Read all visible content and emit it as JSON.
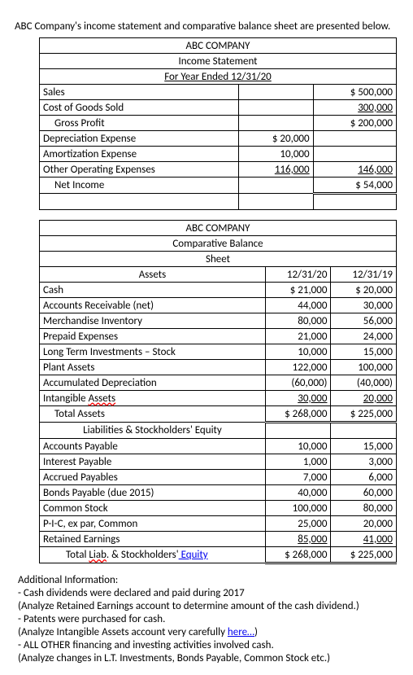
{
  "intro": "ABC Company's income statement and comparative balance sheet are presented below.",
  "income": {
    "title1": "ABC COMPANY",
    "title2": "Income Statement",
    "title3": "For Year Ended 12/31/20",
    "rows": {
      "sales": {
        "label": "Sales",
        "c1": "",
        "c2": "$ 500,000"
      },
      "cogs": {
        "label": "Cost of Goods Sold",
        "c1": "",
        "c2": "300,000"
      },
      "gross": {
        "label": "Gross Profit",
        "c1": "",
        "c2": "$ 200,000"
      },
      "dep": {
        "label": "Depreciation Expense",
        "c1": "$  20,000",
        "c2": ""
      },
      "amort": {
        "label": "Amortization Expense",
        "c1": "10,000",
        "c2": ""
      },
      "other": {
        "label": "Other Operating Expenses",
        "c1": "116,000",
        "c2": "146,000"
      },
      "net": {
        "label": "Net Income",
        "c1": "",
        "c2": "$  54,000"
      }
    }
  },
  "balance": {
    "title1": "ABC COMPANY",
    "title2": "Comparative Balance",
    "title3": "Sheet",
    "assets_header": "Assets",
    "date1": "12/31/20",
    "date2": "12/31/19",
    "rows": {
      "cash": {
        "label": "Cash",
        "c1": "$  21,000",
        "c2": "$  20,000"
      },
      "ar": {
        "label": "Accounts Receivable (net)",
        "c1": "44,000",
        "c2": "30,000"
      },
      "inv": {
        "label": "Merchandise Inventory",
        "c1": "80,000",
        "c2": "56,000"
      },
      "prepd": {
        "label": "Prepaid Expenses",
        "c1": "21,000",
        "c2": "24,000"
      },
      "ltinv": {
        "label": "Long Term Investments – Stock",
        "c1": "10,000",
        "c2": "15,000"
      },
      "plant": {
        "label": "Plant Assets",
        "c1": "122,000",
        "c2": "100,000"
      },
      "accdep": {
        "label": "Accumulated Depreciation",
        "c1": "(60,000)",
        "c2": "(40,000)"
      },
      "intang_a": "Intangible ",
      "intang_b": "Assets",
      "intang": {
        "c1": "30,000",
        "c2": "20,000"
      },
      "tot_a": {
        "label": "Total Assets",
        "c1": "$ 268,000",
        "c2": "$ 225,000"
      }
    },
    "liab_header": "Liabilities & Stockholders' Equity",
    "liab": {
      "ap": {
        "label": "Accounts Payable",
        "c1": "10,000",
        "c2": "15,000"
      },
      "ip": {
        "label": "Interest Payable",
        "c1": "1,000",
        "c2": "3,000"
      },
      "accr": {
        "label": "Accrued Payables",
        "c1": "7,000",
        "c2": "6,000"
      },
      "bonds": {
        "label": "Bonds Payable (due 2015)",
        "c1": "40,000",
        "c2": "60,000"
      },
      "cs": {
        "label": "Common Stock",
        "c1": "100,000",
        "c2": "80,000"
      },
      "pic": {
        "label": "P-I-C, ex par, Common",
        "c1": "25,000",
        "c2": "20,000"
      },
      "re": {
        "label": "Retained Earnings",
        "c1": "85,000",
        "c2": "41,000"
      },
      "tot_pre": "Total ",
      "tot_mid": "Liab",
      "tot_post": ". & Stockholders'",
      "tot_link": " Equity",
      "tot": {
        "c1": "$ 268,000",
        "c2": "$ 225,000"
      }
    }
  },
  "addl": {
    "header": "Additional Information:",
    "b1": "- Cash dividends were declared and paid during 2017",
    "s1": "(Analyze Retained Earnings account to determine amount of the cash dividend.)",
    "b2": "- Patents were purchased for cash.",
    "s2a": "(Analyze Intangible Assets account very carefully ",
    "s2link": "here…",
    "s2b": ")",
    "b3": "- ALL OTHER financing and investing activities involved cash.",
    "s3": "(Analyze changes in L.T. Investments, Bonds Payable, Common Stock etc.)"
  }
}
